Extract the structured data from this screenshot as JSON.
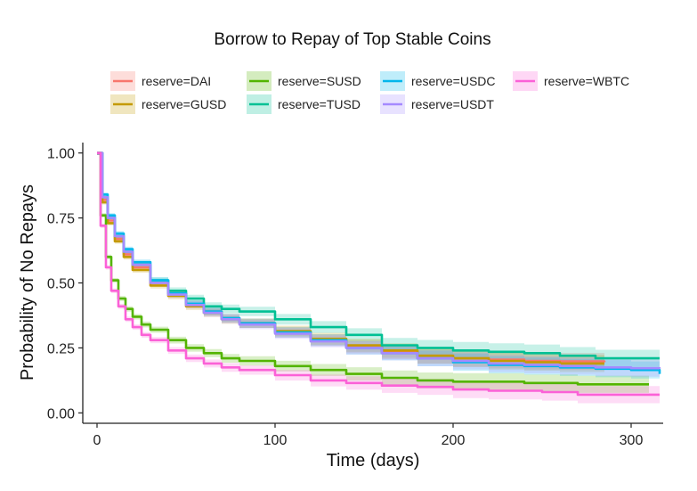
{
  "chart_data": {
    "type": "line",
    "title": "Borrow to Repay of Top Stable Coins",
    "xlabel": "Time (days)",
    "ylabel": "Probability of No Repays",
    "xlim": [
      -8,
      318
    ],
    "ylim": [
      -0.04,
      1.04
    ],
    "x_ticks": [
      0,
      100,
      200,
      300
    ],
    "x_tick_labels": [
      "0",
      "100",
      "200",
      "300"
    ],
    "y_ticks": [
      0,
      0.25,
      0.5,
      0.75,
      1.0
    ],
    "y_tick_labels": [
      "0.00",
      "0.25",
      "0.50",
      "0.75",
      "1.00"
    ],
    "grid": false,
    "legend_position": "top",
    "series": [
      {
        "name": "reserve=DAI",
        "color": "#F8766D",
        "x": [
          0,
          3,
          6,
          10,
          15,
          20,
          30,
          40,
          50,
          60,
          70,
          80,
          100,
          120,
          140,
          160,
          180,
          200,
          220,
          240,
          260,
          285
        ],
        "y": [
          1.0,
          0.82,
          0.74,
          0.67,
          0.61,
          0.56,
          0.5,
          0.46,
          0.42,
          0.39,
          0.365,
          0.345,
          0.31,
          0.28,
          0.255,
          0.235,
          0.22,
          0.21,
          0.205,
          0.2,
          0.198,
          0.195
        ]
      },
      {
        "name": "reserve=GUSD",
        "color": "#C49A00",
        "x": [
          0,
          3,
          6,
          10,
          15,
          20,
          30,
          40,
          50,
          60,
          70,
          80,
          100,
          120,
          140,
          160,
          180,
          200,
          220,
          240,
          260,
          285
        ],
        "y": [
          1.0,
          0.81,
          0.73,
          0.66,
          0.6,
          0.55,
          0.49,
          0.45,
          0.41,
          0.385,
          0.36,
          0.345,
          0.315,
          0.285,
          0.26,
          0.24,
          0.22,
          0.21,
          0.2,
          0.195,
          0.19,
          0.19
        ]
      },
      {
        "name": "reserve=SUSD",
        "color": "#53B400",
        "x": [
          0,
          2,
          5,
          8,
          12,
          16,
          20,
          25,
          30,
          40,
          50,
          60,
          70,
          80,
          100,
          120,
          140,
          160,
          180,
          200,
          240,
          270,
          310
        ],
        "y": [
          1.0,
          0.76,
          0.6,
          0.51,
          0.44,
          0.4,
          0.37,
          0.34,
          0.32,
          0.28,
          0.25,
          0.23,
          0.21,
          0.2,
          0.18,
          0.165,
          0.15,
          0.135,
          0.125,
          0.12,
          0.115,
          0.11,
          0.11
        ]
      },
      {
        "name": "reserve=TUSD",
        "color": "#00C094",
        "x": [
          0,
          3,
          6,
          10,
          15,
          20,
          30,
          40,
          50,
          60,
          70,
          80,
          100,
          120,
          140,
          160,
          180,
          200,
          220,
          240,
          260,
          280,
          316
        ],
        "y": [
          1.0,
          0.83,
          0.75,
          0.68,
          0.62,
          0.57,
          0.51,
          0.47,
          0.44,
          0.41,
          0.4,
          0.39,
          0.36,
          0.33,
          0.3,
          0.26,
          0.25,
          0.24,
          0.235,
          0.23,
          0.22,
          0.21,
          0.21
        ]
      },
      {
        "name": "reserve=USDC",
        "color": "#00B6EB",
        "x": [
          0,
          3,
          6,
          10,
          15,
          20,
          30,
          40,
          50,
          60,
          70,
          80,
          100,
          120,
          140,
          160,
          180,
          200,
          220,
          240,
          260,
          280,
          300,
          316
        ],
        "y": [
          1.0,
          0.84,
          0.76,
          0.69,
          0.63,
          0.58,
          0.51,
          0.46,
          0.42,
          0.39,
          0.365,
          0.345,
          0.31,
          0.28,
          0.25,
          0.23,
          0.21,
          0.195,
          0.185,
          0.18,
          0.175,
          0.17,
          0.165,
          0.15
        ]
      },
      {
        "name": "reserve=USDT",
        "color": "#A58AFF",
        "x": [
          0,
          3,
          6,
          10,
          15,
          20,
          30,
          40,
          50,
          60,
          70,
          80,
          100,
          120,
          140,
          160,
          180,
          200,
          220,
          240,
          260,
          280,
          300,
          316
        ],
        "y": [
          1.0,
          0.83,
          0.75,
          0.68,
          0.62,
          0.57,
          0.5,
          0.455,
          0.415,
          0.385,
          0.36,
          0.34,
          0.305,
          0.275,
          0.25,
          0.23,
          0.21,
          0.2,
          0.19,
          0.185,
          0.18,
          0.175,
          0.172,
          0.17
        ]
      },
      {
        "name": "reserve=WBTC",
        "color": "#FB61D7",
        "x": [
          0,
          2,
          5,
          8,
          12,
          16,
          20,
          25,
          30,
          40,
          50,
          60,
          70,
          80,
          100,
          120,
          140,
          160,
          180,
          200,
          220,
          250,
          270,
          316
        ],
        "y": [
          1.0,
          0.72,
          0.56,
          0.47,
          0.41,
          0.36,
          0.33,
          0.3,
          0.28,
          0.24,
          0.21,
          0.19,
          0.175,
          0.165,
          0.145,
          0.125,
          0.115,
          0.105,
          0.1,
          0.09,
          0.085,
          0.08,
          0.07,
          0.07
        ]
      }
    ]
  },
  "legend": {
    "layout": [
      [
        "reserve=DAI",
        "reserve=SUSD",
        "reserve=USDC",
        "reserve=WBTC"
      ],
      [
        "reserve=GUSD",
        "reserve=TUSD",
        "reserve=USDT"
      ]
    ]
  }
}
